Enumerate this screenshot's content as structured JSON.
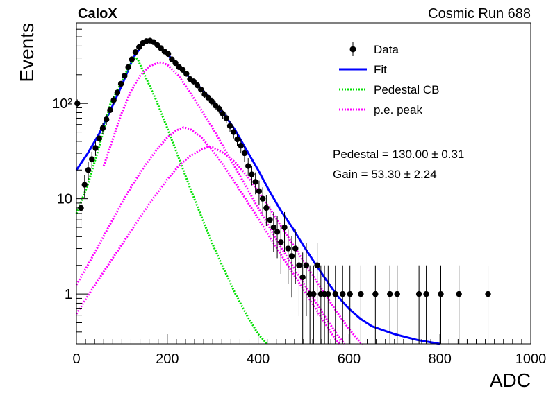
{
  "header": {
    "left_title": "CaloX",
    "right_title": "Cosmic Run 688"
  },
  "stats": {
    "pedestal_text": "Pedestal = 130.00 ± 0.31",
    "gain_text": "Gain = 53.30 ± 2.24"
  },
  "colors": {
    "data": "#000000",
    "fit": "#0000ff",
    "pedestal": "#00e000",
    "pe_peak": "#ff00ff"
  },
  "chart_data": {
    "type": "scatter",
    "title": "CaloX",
    "subtitle": "Cosmic Run 688",
    "xlabel": "ADC",
    "ylabel": "Events",
    "xlim": [
      0,
      1000
    ],
    "ylim": [
      0.3,
      700
    ],
    "y_scale": "log",
    "grid": false,
    "legend_position": "top-right",
    "x_ticks": [
      "0",
      "200",
      "400",
      "600",
      "800",
      "1000"
    ],
    "y_ticks": [
      {
        "value": 1,
        "label": "1"
      },
      {
        "value": 10,
        "label": "10"
      },
      {
        "value": 100,
        "label": "10²"
      }
    ],
    "legend": [
      {
        "key": "data",
        "label": "Data",
        "style": "marker"
      },
      {
        "key": "fit",
        "label": "Fit",
        "style": "solid"
      },
      {
        "key": "pedestal",
        "label": "Pedestal CB",
        "style": "dotted"
      },
      {
        "key": "pe_peak",
        "label": "p.e. peak",
        "style": "dotted"
      }
    ],
    "series": [
      {
        "name": "Data",
        "key": "data",
        "kind": "points",
        "points": [
          {
            "x": 2,
            "y": 100
          },
          {
            "x": 10,
            "y": 8
          },
          {
            "x": 18,
            "y": 14
          },
          {
            "x": 26,
            "y": 20
          },
          {
            "x": 34,
            "y": 26
          },
          {
            "x": 42,
            "y": 34
          },
          {
            "x": 50,
            "y": 43
          },
          {
            "x": 58,
            "y": 55
          },
          {
            "x": 66,
            "y": 68
          },
          {
            "x": 74,
            "y": 85
          },
          {
            "x": 82,
            "y": 108
          },
          {
            "x": 90,
            "y": 130
          },
          {
            "x": 98,
            "y": 160
          },
          {
            "x": 106,
            "y": 195
          },
          {
            "x": 114,
            "y": 240
          },
          {
            "x": 122,
            "y": 290
          },
          {
            "x": 130,
            "y": 345
          },
          {
            "x": 138,
            "y": 390
          },
          {
            "x": 146,
            "y": 430
          },
          {
            "x": 154,
            "y": 450
          },
          {
            "x": 162,
            "y": 455
          },
          {
            "x": 170,
            "y": 440
          },
          {
            "x": 178,
            "y": 410
          },
          {
            "x": 186,
            "y": 380
          },
          {
            "x": 194,
            "y": 350
          },
          {
            "x": 202,
            "y": 330
          },
          {
            "x": 210,
            "y": 290
          },
          {
            "x": 218,
            "y": 265
          },
          {
            "x": 226,
            "y": 240
          },
          {
            "x": 234,
            "y": 225
          },
          {
            "x": 242,
            "y": 205
          },
          {
            "x": 250,
            "y": 180
          },
          {
            "x": 258,
            "y": 170
          },
          {
            "x": 266,
            "y": 155
          },
          {
            "x": 274,
            "y": 140
          },
          {
            "x": 282,
            "y": 125
          },
          {
            "x": 290,
            "y": 115
          },
          {
            "x": 298,
            "y": 105
          },
          {
            "x": 306,
            "y": 95
          },
          {
            "x": 314,
            "y": 88
          },
          {
            "x": 322,
            "y": 78
          },
          {
            "x": 330,
            "y": 70
          },
          {
            "x": 338,
            "y": 58
          },
          {
            "x": 346,
            "y": 50
          },
          {
            "x": 354,
            "y": 42
          },
          {
            "x": 362,
            "y": 36
          },
          {
            "x": 370,
            "y": 30
          },
          {
            "x": 378,
            "y": 22
          },
          {
            "x": 386,
            "y": 18
          },
          {
            "x": 394,
            "y": 15
          },
          {
            "x": 402,
            "y": 12
          },
          {
            "x": 410,
            "y": 10
          },
          {
            "x": 418,
            "y": 8
          },
          {
            "x": 426,
            "y": 6
          },
          {
            "x": 434,
            "y": 5
          },
          {
            "x": 442,
            "y": 4.5
          },
          {
            "x": 450,
            "y": 3.5
          },
          {
            "x": 458,
            "y": 5
          },
          {
            "x": 466,
            "y": 3
          },
          {
            "x": 474,
            "y": 2.5
          },
          {
            "x": 482,
            "y": 3
          },
          {
            "x": 490,
            "y": 2
          },
          {
            "x": 498,
            "y": 1.5
          },
          {
            "x": 506,
            "y": 2
          },
          {
            "x": 514,
            "y": 1
          },
          {
            "x": 522,
            "y": 1
          },
          {
            "x": 530,
            "y": 2
          },
          {
            "x": 538,
            "y": 1
          },
          {
            "x": 546,
            "y": 1
          },
          {
            "x": 554,
            "y": 1
          },
          {
            "x": 570,
            "y": 1
          },
          {
            "x": 586,
            "y": 1
          },
          {
            "x": 602,
            "y": 1
          },
          {
            "x": 626,
            "y": 1
          },
          {
            "x": 658,
            "y": 1
          },
          {
            "x": 690,
            "y": 1
          },
          {
            "x": 706,
            "y": 1
          },
          {
            "x": 754,
            "y": 1
          },
          {
            "x": 770,
            "y": 1
          },
          {
            "x": 802,
            "y": 1
          },
          {
            "x": 842,
            "y": 1
          },
          {
            "x": 906,
            "y": 1
          }
        ]
      },
      {
        "name": "Fit",
        "key": "fit",
        "kind": "line",
        "points": [
          {
            "x": 0,
            "y": 20
          },
          {
            "x": 25,
            "y": 30
          },
          {
            "x": 50,
            "y": 48
          },
          {
            "x": 75,
            "y": 85
          },
          {
            "x": 100,
            "y": 155
          },
          {
            "x": 125,
            "y": 300
          },
          {
            "x": 150,
            "y": 445
          },
          {
            "x": 160,
            "y": 455
          },
          {
            "x": 175,
            "y": 425
          },
          {
            "x": 200,
            "y": 330
          },
          {
            "x": 225,
            "y": 245
          },
          {
            "x": 250,
            "y": 185
          },
          {
            "x": 275,
            "y": 142
          },
          {
            "x": 300,
            "y": 105
          },
          {
            "x": 325,
            "y": 77
          },
          {
            "x": 350,
            "y": 52
          },
          {
            "x": 375,
            "y": 32
          },
          {
            "x": 400,
            "y": 20
          },
          {
            "x": 425,
            "y": 12
          },
          {
            "x": 450,
            "y": 7.5
          },
          {
            "x": 475,
            "y": 5
          },
          {
            "x": 500,
            "y": 3.2
          },
          {
            "x": 525,
            "y": 2.1
          },
          {
            "x": 550,
            "y": 1.4
          },
          {
            "x": 575,
            "y": 0.95
          },
          {
            "x": 600,
            "y": 0.7
          },
          {
            "x": 625,
            "y": 0.55
          },
          {
            "x": 650,
            "y": 0.46
          },
          {
            "x": 700,
            "y": 0.38
          },
          {
            "x": 750,
            "y": 0.33
          },
          {
            "x": 800,
            "y": 0.3
          }
        ]
      },
      {
        "name": "Pedestal CB",
        "key": "pedestal",
        "kind": "dotted",
        "points": [
          {
            "x": 0,
            "y": 7
          },
          {
            "x": 25,
            "y": 14
          },
          {
            "x": 50,
            "y": 35
          },
          {
            "x": 75,
            "y": 100
          },
          {
            "x": 100,
            "y": 170
          },
          {
            "x": 115,
            "y": 240
          },
          {
            "x": 125,
            "y": 290
          },
          {
            "x": 130,
            "y": 305
          },
          {
            "x": 135,
            "y": 290
          },
          {
            "x": 150,
            "y": 200
          },
          {
            "x": 175,
            "y": 110
          },
          {
            "x": 200,
            "y": 55
          },
          {
            "x": 225,
            "y": 27
          },
          {
            "x": 250,
            "y": 13
          },
          {
            "x": 275,
            "y": 6.5
          },
          {
            "x": 300,
            "y": 3.3
          },
          {
            "x": 325,
            "y": 1.8
          },
          {
            "x": 350,
            "y": 1.0
          },
          {
            "x": 375,
            "y": 0.6
          },
          {
            "x": 400,
            "y": 0.38
          },
          {
            "x": 420,
            "y": 0.3
          }
        ]
      },
      {
        "name": "p.e. peak 1",
        "key": "pe_peak",
        "kind": "dotted",
        "points": [
          {
            "x": 60,
            "y": 22
          },
          {
            "x": 80,
            "y": 42
          },
          {
            "x": 100,
            "y": 80
          },
          {
            "x": 120,
            "y": 135
          },
          {
            "x": 140,
            "y": 195
          },
          {
            "x": 160,
            "y": 245
          },
          {
            "x": 183,
            "y": 270
          },
          {
            "x": 200,
            "y": 255
          },
          {
            "x": 225,
            "y": 195
          },
          {
            "x": 250,
            "y": 130
          },
          {
            "x": 275,
            "y": 85
          },
          {
            "x": 300,
            "y": 55
          },
          {
            "x": 325,
            "y": 34
          },
          {
            "x": 350,
            "y": 21
          },
          {
            "x": 375,
            "y": 13
          },
          {
            "x": 400,
            "y": 8
          },
          {
            "x": 425,
            "y": 5
          },
          {
            "x": 450,
            "y": 3.1
          },
          {
            "x": 475,
            "y": 2.0
          },
          {
            "x": 500,
            "y": 1.3
          },
          {
            "x": 525,
            "y": 0.85
          },
          {
            "x": 550,
            "y": 0.55
          },
          {
            "x": 575,
            "y": 0.37
          },
          {
            "x": 590,
            "y": 0.3
          }
        ]
      },
      {
        "name": "p.e. peak 2",
        "key": "pe_peak",
        "kind": "dotted",
        "points": [
          {
            "x": 0,
            "y": 1.25
          },
          {
            "x": 25,
            "y": 2.0
          },
          {
            "x": 50,
            "y": 3.3
          },
          {
            "x": 75,
            "y": 5.5
          },
          {
            "x": 100,
            "y": 9
          },
          {
            "x": 125,
            "y": 14.5
          },
          {
            "x": 150,
            "y": 22
          },
          {
            "x": 175,
            "y": 32
          },
          {
            "x": 200,
            "y": 44
          },
          {
            "x": 220,
            "y": 52
          },
          {
            "x": 236,
            "y": 56
          },
          {
            "x": 250,
            "y": 54
          },
          {
            "x": 275,
            "y": 44
          },
          {
            "x": 300,
            "y": 32
          },
          {
            "x": 325,
            "y": 22
          },
          {
            "x": 350,
            "y": 14.5
          },
          {
            "x": 375,
            "y": 9.5
          },
          {
            "x": 400,
            "y": 6.2
          },
          {
            "x": 425,
            "y": 4.0
          },
          {
            "x": 450,
            "y": 2.6
          },
          {
            "x": 475,
            "y": 1.7
          },
          {
            "x": 500,
            "y": 1.1
          },
          {
            "x": 525,
            "y": 0.72
          },
          {
            "x": 550,
            "y": 0.47
          },
          {
            "x": 575,
            "y": 0.31
          },
          {
            "x": 580,
            "y": 0.3
          }
        ]
      },
      {
        "name": "p.e. peak 3",
        "key": "pe_peak",
        "kind": "dotted",
        "points": [
          {
            "x": 0,
            "y": 0.62
          },
          {
            "x": 25,
            "y": 0.95
          },
          {
            "x": 50,
            "y": 1.45
          },
          {
            "x": 75,
            "y": 2.2
          },
          {
            "x": 100,
            "y": 3.3
          },
          {
            "x": 125,
            "y": 5
          },
          {
            "x": 150,
            "y": 7.5
          },
          {
            "x": 175,
            "y": 11
          },
          {
            "x": 200,
            "y": 16
          },
          {
            "x": 225,
            "y": 22
          },
          {
            "x": 250,
            "y": 28
          },
          {
            "x": 275,
            "y": 33
          },
          {
            "x": 290,
            "y": 35
          },
          {
            "x": 300,
            "y": 34.5
          },
          {
            "x": 325,
            "y": 30
          },
          {
            "x": 350,
            "y": 24
          },
          {
            "x": 375,
            "y": 17.5
          },
          {
            "x": 400,
            "y": 12
          },
          {
            "x": 425,
            "y": 8
          },
          {
            "x": 450,
            "y": 5.2
          },
          {
            "x": 475,
            "y": 3.4
          },
          {
            "x": 500,
            "y": 2.2
          },
          {
            "x": 525,
            "y": 1.45
          },
          {
            "x": 550,
            "y": 0.95
          },
          {
            "x": 575,
            "y": 0.63
          },
          {
            "x": 600,
            "y": 0.43
          },
          {
            "x": 625,
            "y": 0.31
          },
          {
            "x": 630,
            "y": 0.3
          }
        ]
      }
    ]
  }
}
